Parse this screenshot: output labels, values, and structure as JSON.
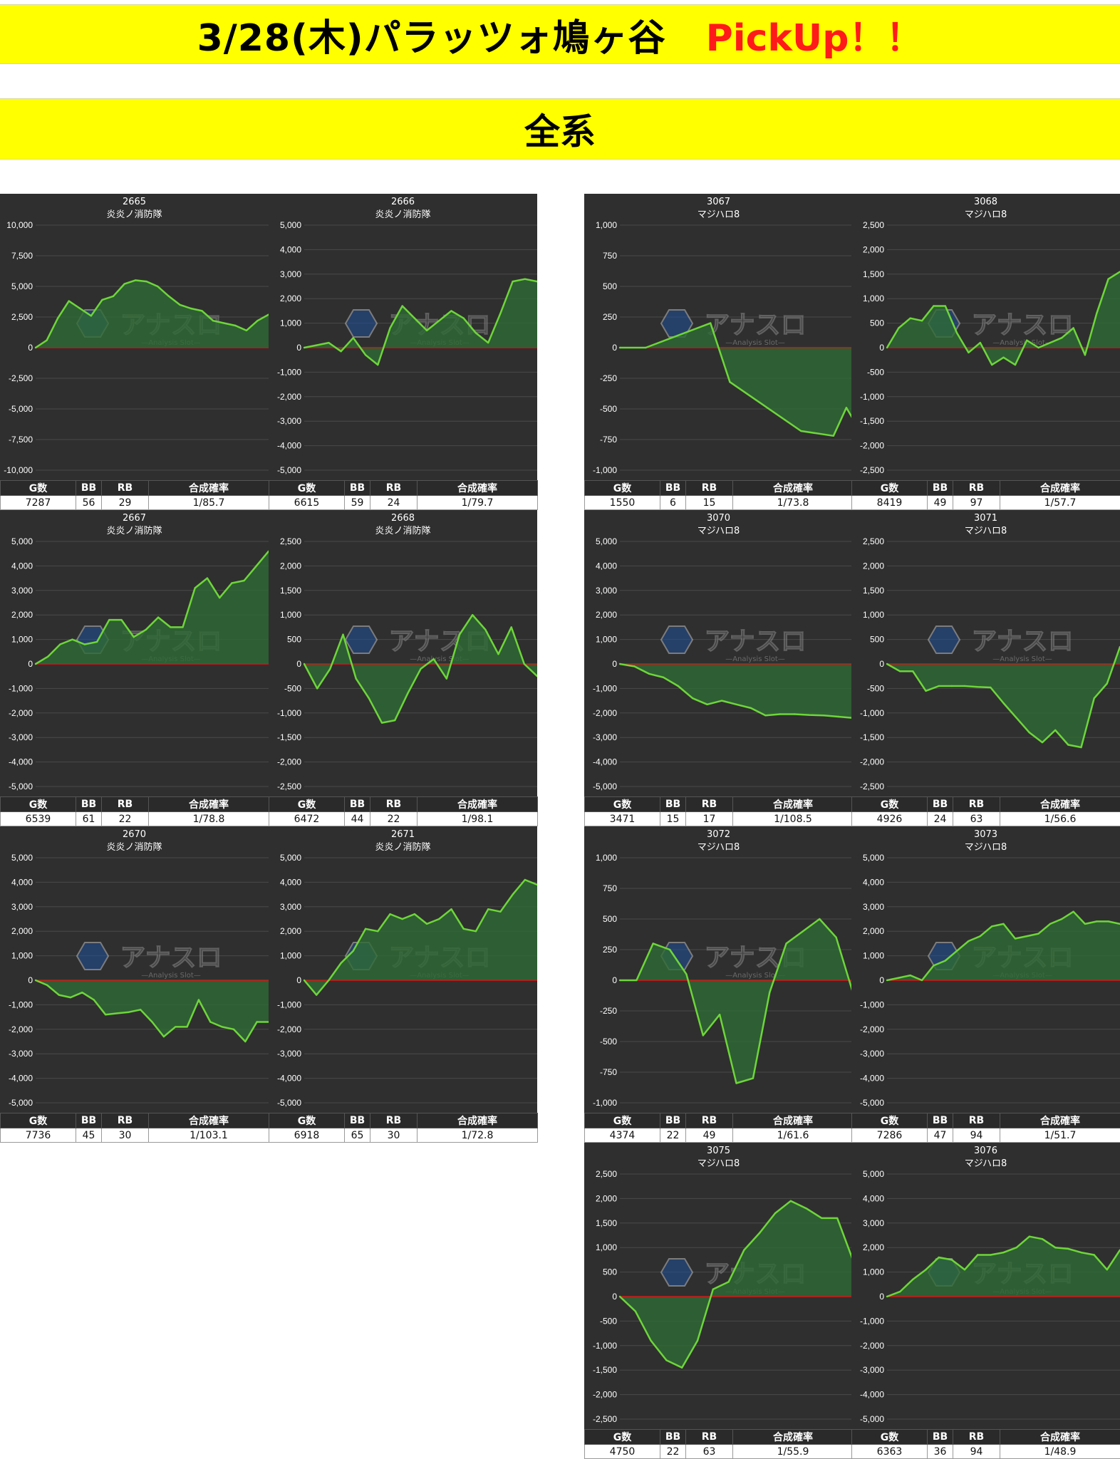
{
  "header": {
    "title": "3/28(木)パラッツォ鳩ヶ谷",
    "pickup": "PickUp！！",
    "section": "全系"
  },
  "stats_headers": [
    "G数",
    "BB",
    "RB",
    "合成確率"
  ],
  "watermark": {
    "main": "アナスロ",
    "sub": "—Analysis Slot—"
  },
  "colors": {
    "line": "#6ed63a",
    "fill": "#2e6a35",
    "zero_line": "#d01818",
    "banner": "#ffff00"
  },
  "chart_data": [
    {
      "type": "area",
      "id": "2665",
      "name": "炎炎ノ消防隊",
      "ylim": [
        -10000,
        10000
      ],
      "yticks": [
        "10,000",
        "7,500",
        "5,000",
        "2,500",
        "0",
        "-2,500",
        "-5,000",
        "-7,500",
        "-10,000"
      ],
      "values": [
        0,
        600,
        2400,
        3800,
        3200,
        2600,
        3900,
        4200,
        5200,
        5500,
        5400,
        5000,
        4200,
        3500,
        3200,
        3000,
        2200,
        2000,
        1800,
        1400,
        2200,
        2700
      ],
      "stats": {
        "g": "7287",
        "bb": "56",
        "rb": "29",
        "rate": "1/85.7"
      }
    },
    {
      "type": "area",
      "id": "2666",
      "name": "炎炎ノ消防隊",
      "ylim": [
        -5000,
        5000
      ],
      "yticks": [
        "5,000",
        "4,000",
        "3,000",
        "2,000",
        "1,000",
        "0",
        "-1,000",
        "-2,000",
        "-3,000",
        "-4,000",
        "-5,000"
      ],
      "values": [
        0,
        100,
        200,
        -150,
        400,
        -300,
        -700,
        800,
        1700,
        1200,
        700,
        1100,
        1500,
        1200,
        600,
        200,
        1400,
        2700,
        2800,
        2700
      ],
      "stats": {
        "g": "6615",
        "bb": "59",
        "rb": "24",
        "rate": "1/79.7"
      }
    },
    {
      "type": "area",
      "id": "3067",
      "name": "マジハロ8",
      "ylim": [
        -1000,
        1000
      ],
      "yticks": [
        "1,000",
        "750",
        "500",
        "250",
        "0",
        "-250",
        "-500",
        "-750",
        "-1,000"
      ],
      "x": [
        0,
        4,
        14,
        17,
        28,
        33,
        35,
        36
      ],
      "values": [
        0,
        0,
        200,
        -280,
        -680,
        -720,
        -490,
        -580
      ],
      "stats": {
        "g": "1550",
        "bb": "6",
        "rb": "15",
        "rate": "1/73.8"
      }
    },
    {
      "type": "area",
      "id": "3068",
      "name": "マジハロ8",
      "ylim": [
        -2500,
        2500
      ],
      "yticks": [
        "2,500",
        "2,000",
        "1,500",
        "1,000",
        "500",
        "0",
        "-500",
        "-1,000",
        "-1,500",
        "-2,000",
        "-2,500"
      ],
      "values": [
        0,
        400,
        600,
        550,
        850,
        850,
        300,
        -100,
        100,
        -350,
        -200,
        -350,
        150,
        0,
        100,
        200,
        400,
        -150,
        700,
        1400,
        1550
      ],
      "stats": {
        "g": "8419",
        "bb": "49",
        "rb": "97",
        "rate": "1/57.7"
      }
    },
    {
      "type": "area",
      "id": "2667",
      "name": "炎炎ノ消防隊",
      "ylim": [
        -5000,
        5000
      ],
      "yticks": [
        "5,000",
        "4,000",
        "3,000",
        "2,000",
        "1,000",
        "0",
        "-1,000",
        "-2,000",
        "-3,000",
        "-4,000",
        "-5,000"
      ],
      "values": [
        0,
        300,
        800,
        1000,
        800,
        900,
        1800,
        1800,
        1100,
        1400,
        1900,
        1500,
        1500,
        3100,
        3500,
        2700,
        3300,
        3400,
        4000,
        4600
      ],
      "stats": {
        "g": "6539",
        "bb": "61",
        "rb": "22",
        "rate": "1/78.8"
      }
    },
    {
      "type": "area",
      "id": "2668",
      "name": "炎炎ノ消防隊",
      "ylim": [
        -2500,
        2500
      ],
      "yticks": [
        "2,500",
        "2,000",
        "1,500",
        "1,000",
        "500",
        "0",
        "-500",
        "-1,000",
        "-1,500",
        "-2,000",
        "-2,500"
      ],
      "values": [
        0,
        -500,
        -100,
        600,
        -300,
        -700,
        -1200,
        -1150,
        -600,
        -100,
        100,
        -300,
        600,
        1000,
        700,
        200,
        750,
        0,
        -250
      ],
      "stats": {
        "g": "6472",
        "bb": "44",
        "rb": "22",
        "rate": "1/98.1"
      }
    },
    {
      "type": "area",
      "id": "3070",
      "name": "マジハロ8",
      "ylim": [
        -5000,
        5000
      ],
      "yticks": [
        "5,000",
        "4,000",
        "3,000",
        "2,000",
        "1,000",
        "0",
        "-1,000",
        "-2,000",
        "-3,000",
        "-4,000",
        "-5,000"
      ],
      "values": [
        0,
        -100,
        -400,
        -550,
        -900,
        -1400,
        -1650,
        -1500,
        -1650,
        -1800,
        -2100,
        -2050,
        -2050,
        -2080,
        -2100,
        -2150,
        -2200
      ],
      "stats": {
        "g": "3471",
        "bb": "15",
        "rb": "17",
        "rate": "1/108.5"
      }
    },
    {
      "type": "area",
      "id": "3071",
      "name": "マジハロ8",
      "ylim": [
        -2500,
        2500
      ],
      "yticks": [
        "2,500",
        "2,000",
        "1,500",
        "1,000",
        "500",
        "0",
        "-500",
        "-1,000",
        "-1,500",
        "-2,000",
        "-2,500"
      ],
      "values": [
        0,
        -150,
        -150,
        -550,
        -450,
        -450,
        -450,
        -470,
        -480,
        -800,
        -1100,
        -1400,
        -1600,
        -1350,
        -1650,
        -1700,
        -700,
        -400,
        350
      ],
      "stats": {
        "g": "4926",
        "bb": "24",
        "rb": "63",
        "rate": "1/56.6"
      }
    },
    {
      "type": "area",
      "id": "2670",
      "name": "炎炎ノ消防隊",
      "ylim": [
        -5000,
        5000
      ],
      "yticks": [
        "5,000",
        "4,000",
        "3,000",
        "2,000",
        "1,000",
        "0",
        "-1,000",
        "-2,000",
        "-3,000",
        "-4,000",
        "-5,000"
      ],
      "values": [
        0,
        -200,
        -600,
        -700,
        -500,
        -800,
        -1400,
        -1350,
        -1300,
        -1200,
        -1700,
        -2300,
        -1900,
        -1900,
        -800,
        -1700,
        -1900,
        -2000,
        -2500,
        -1700,
        -1700
      ],
      "stats": {
        "g": "7736",
        "bb": "45",
        "rb": "30",
        "rate": "1/103.1"
      }
    },
    {
      "type": "area",
      "id": "2671",
      "name": "炎炎ノ消防隊",
      "ylim": [
        -5000,
        5000
      ],
      "yticks": [
        "5,000",
        "4,000",
        "3,000",
        "2,000",
        "1,000",
        "0",
        "-1,000",
        "-2,000",
        "-3,000",
        "-4,000",
        "-5,000"
      ],
      "values": [
        0,
        -600,
        0,
        700,
        1200,
        2100,
        2000,
        2700,
        2500,
        2700,
        2300,
        2500,
        2900,
        2100,
        2000,
        2900,
        2800,
        3500,
        4100,
        3900
      ],
      "stats": {
        "g": "6918",
        "bb": "65",
        "rb": "30",
        "rate": "1/72.8"
      }
    },
    {
      "type": "area",
      "id": "3072",
      "name": "マジハロ8",
      "ylim": [
        -1000,
        1000
      ],
      "yticks": [
        "1,000",
        "750",
        "500",
        "250",
        "0",
        "-250",
        "-500",
        "-750",
        "-1,000"
      ],
      "values": [
        0,
        0,
        300,
        250,
        50,
        -450,
        -280,
        -840,
        -800,
        -100,
        300,
        400,
        500,
        350,
        -100
      ],
      "stats": {
        "g": "4374",
        "bb": "22",
        "rb": "49",
        "rate": "1/61.6"
      }
    },
    {
      "type": "area",
      "id": "3073",
      "name": "マジハロ8",
      "ylim": [
        -5000,
        5000
      ],
      "yticks": [
        "5,000",
        "4,000",
        "3,000",
        "2,000",
        "1,000",
        "0",
        "-1,000",
        "-2,000",
        "-3,000",
        "-4,000",
        "-5,000"
      ],
      "values": [
        0,
        100,
        200,
        0,
        600,
        800,
        1200,
        1600,
        1800,
        2200,
        2300,
        1700,
        1800,
        1900,
        2300,
        2500,
        2800,
        2300,
        2400,
        2400,
        2300
      ],
      "stats": {
        "g": "7286",
        "bb": "47",
        "rb": "94",
        "rate": "1/51.7"
      }
    },
    {
      "type": "area",
      "id": "3075",
      "name": "マジハロ8",
      "ylim": [
        -2500,
        2500
      ],
      "yticks": [
        "2,500",
        "2,000",
        "1,500",
        "1,000",
        "500",
        "0",
        "-500",
        "-1,000",
        "-1,500",
        "-2,000",
        "-2,500"
      ],
      "values": [
        0,
        -300,
        -900,
        -1300,
        -1450,
        -900,
        150,
        300,
        950,
        1300,
        1700,
        1950,
        1800,
        1600,
        1600,
        750
      ],
      "stats": {
        "g": "4750",
        "bb": "22",
        "rb": "63",
        "rate": "1/55.9"
      }
    },
    {
      "type": "area",
      "id": "3076",
      "name": "マジハロ8",
      "ylim": [
        -5000,
        5000
      ],
      "yticks": [
        "5,000",
        "4,000",
        "3,000",
        "2,000",
        "1,000",
        "0",
        "-1,000",
        "-2,000",
        "-3,000",
        "-4,000",
        "-5,000"
      ],
      "values": [
        0,
        200,
        700,
        1100,
        1600,
        1500,
        1100,
        1700,
        1700,
        1800,
        2000,
        2450,
        2350,
        2000,
        1950,
        1800,
        1700,
        1100,
        1900
      ],
      "stats": {
        "g": "6363",
        "bb": "36",
        "rb": "94",
        "rate": "1/48.9"
      }
    }
  ]
}
